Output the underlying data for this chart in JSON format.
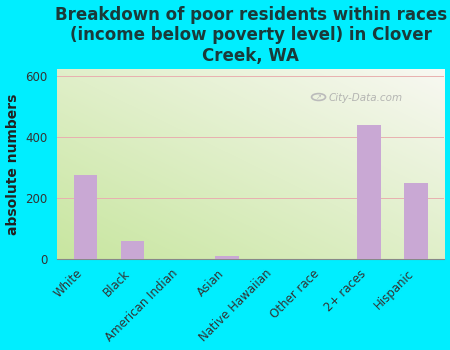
{
  "title": "Breakdown of poor residents within races\n(income below poverty level) in Clover\nCreek, WA",
  "categories": [
    "White",
    "Black",
    "American Indian",
    "Asian",
    "Native Hawaiian",
    "Other race",
    "2+ races",
    "Hispanic"
  ],
  "values": [
    275,
    60,
    0,
    10,
    0,
    0,
    440,
    248
  ],
  "bar_color": "#c9a8d4",
  "ylabel": "absolute numbers",
  "ylim": [
    0,
    620
  ],
  "yticks": [
    0,
    200,
    400,
    600
  ],
  "background_outer": "#00eeff",
  "background_top_left": "#c8e6a0",
  "background_bottom_right": "#f8f8f2",
  "watermark": "City-Data.com",
  "title_color": "#1a3a3a",
  "title_fontsize": 12,
  "ylabel_fontsize": 10,
  "tick_fontsize": 8.5
}
